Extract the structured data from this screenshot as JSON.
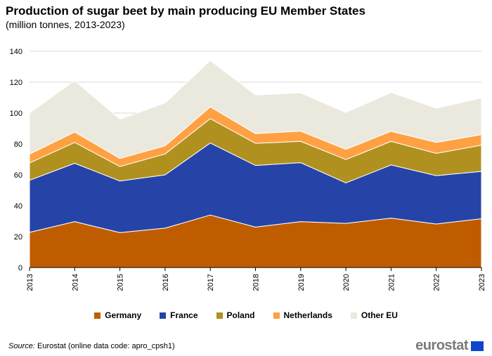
{
  "title": "Production of sugar beet by main producing EU Member States",
  "subtitle": "(million tonnes, 2013-2023)",
  "source_label": "Source:",
  "source_text": "Eurostat (online data code: apro_cpsh1)",
  "logo_text": "eurostat",
  "chart_data": {
    "type": "area",
    "stacked": true,
    "title": "Production of sugar beet by main producing EU Member States",
    "xlabel": "",
    "ylabel": "",
    "ylim": [
      0,
      140
    ],
    "yticks": [
      0,
      20,
      40,
      60,
      80,
      100,
      120,
      140
    ],
    "grid": true,
    "legend_position": "bottom",
    "categories": [
      "2013",
      "2014",
      "2015",
      "2016",
      "2017",
      "2018",
      "2019",
      "2020",
      "2021",
      "2022",
      "2023"
    ],
    "series": [
      {
        "name": "Germany",
        "color": "#c05c00",
        "values": [
          22.8,
          29.7,
          22.6,
          25.5,
          34.0,
          26.2,
          29.7,
          28.6,
          32.0,
          28.2,
          31.6
        ]
      },
      {
        "name": "France",
        "color": "#2644a7",
        "values": [
          33.7,
          37.8,
          33.4,
          34.5,
          46.6,
          39.9,
          38.2,
          26.2,
          34.4,
          31.3,
          30.6
        ]
      },
      {
        "name": "Poland",
        "color": "#b09120",
        "values": [
          11.2,
          13.5,
          9.4,
          13.5,
          15.8,
          14.3,
          13.8,
          15.1,
          15.3,
          14.4,
          17.0
        ]
      },
      {
        "name": "Netherlands",
        "color": "#ffa143",
        "values": [
          5.7,
          6.7,
          5.2,
          5.3,
          7.6,
          6.3,
          6.6,
          6.6,
          6.5,
          7.1,
          6.8
        ]
      },
      {
        "name": "Other EU",
        "color": "#ebe9de",
        "values": [
          26.6,
          33.3,
          25.4,
          27.7,
          30.0,
          25.0,
          24.7,
          23.9,
          25.1,
          22.2,
          23.7
        ]
      }
    ]
  }
}
